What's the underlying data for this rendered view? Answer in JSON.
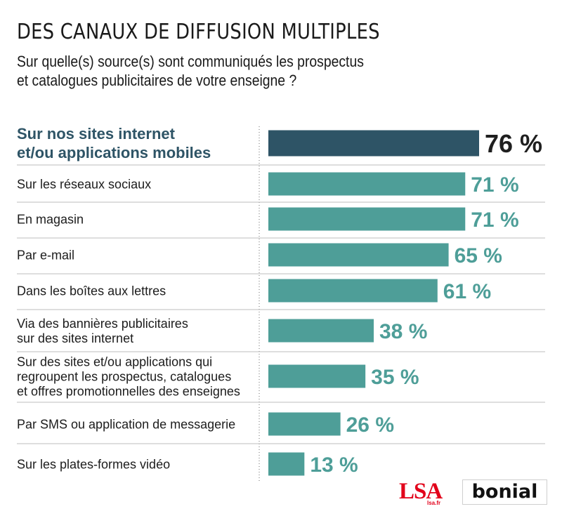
{
  "header": {
    "title": "DES CANAUX DE DIFFUSION MULTIPLES",
    "subtitle_line1": "Sur quelle(s) source(s) sont communiqués les prospectus",
    "subtitle_line2": "et catalogues publicitaires de votre enseigne ?"
  },
  "colors": {
    "highlight_bar": "#2e5466",
    "bar": "#4e9e98",
    "value_text": "#4e9e98",
    "highlight_value_text": "#1f1f1f",
    "divider": "#bdbdbd"
  },
  "chart_data": {
    "type": "bar",
    "orientation": "horizontal",
    "title": "DES CANAUX DE DIFFUSION MULTIPLES",
    "unit": "%",
    "xlim": [
      0,
      100
    ],
    "grid": false,
    "categories": [
      [
        "Sur nos sites internet",
        "et/ou applications mobiles"
      ],
      [
        "Sur les réseaux sociaux"
      ],
      [
        "En magasin"
      ],
      [
        "Par e-mail"
      ],
      [
        "Dans les boîtes aux lettres"
      ],
      [
        "Via des bannières publicitaires",
        "sur des sites internet"
      ],
      [
        "Sur des sites et/ou applications qui",
        "regroupent les prospectus, catalogues",
        "et offres promotionnelles des enseignes"
      ],
      [
        "Par SMS ou application de messagerie"
      ],
      [
        "Sur les plates-formes vidéo"
      ]
    ],
    "values": [
      76,
      71,
      71,
      65,
      61,
      38,
      35,
      26,
      13
    ],
    "value_labels": [
      "76 %",
      "71 %",
      "71 %",
      "65 %",
      "61 %",
      "38 %",
      "35 %",
      "26 %",
      "13 %"
    ],
    "highlight_index": 0
  },
  "footer": {
    "logo_lsa": "LSA",
    "logo_lsa_sub": "lsa.fr",
    "logo_bonial": "bonial"
  }
}
